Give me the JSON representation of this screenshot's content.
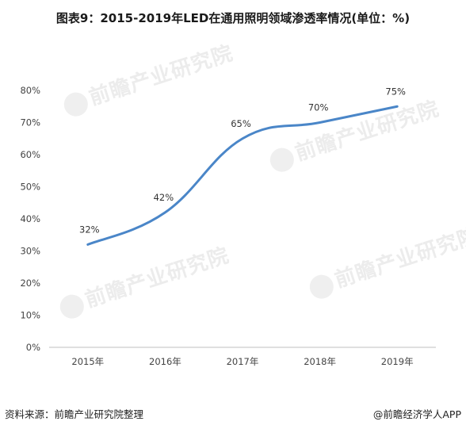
{
  "title": "图表9：2015-2019年LED在通用照明领域渗透率情况(单位：%)",
  "watermark_text": "前瞻产业研究院",
  "footer": {
    "source": "资料来源：前瞻产业研究院整理",
    "brand": "@前瞻经济学人APP"
  },
  "colors": {
    "line": "#4a86c8",
    "axis": "#bfbfbf",
    "watermark": "#ececec"
  },
  "chart_data": {
    "type": "line",
    "categories": [
      "2015年",
      "2016年",
      "2017年",
      "2018年",
      "2019年"
    ],
    "series": [
      {
        "values": [
          32,
          42,
          65,
          70,
          75
        ],
        "labels": [
          "32%",
          "42%",
          "65%",
          "70%",
          "75%"
        ]
      }
    ],
    "y_ticks": [
      "0%",
      "10%",
      "20%",
      "30%",
      "40%",
      "50%",
      "60%",
      "70%",
      "80%"
    ],
    "ylim": [
      0,
      80
    ],
    "grid": false,
    "smooth": true
  }
}
